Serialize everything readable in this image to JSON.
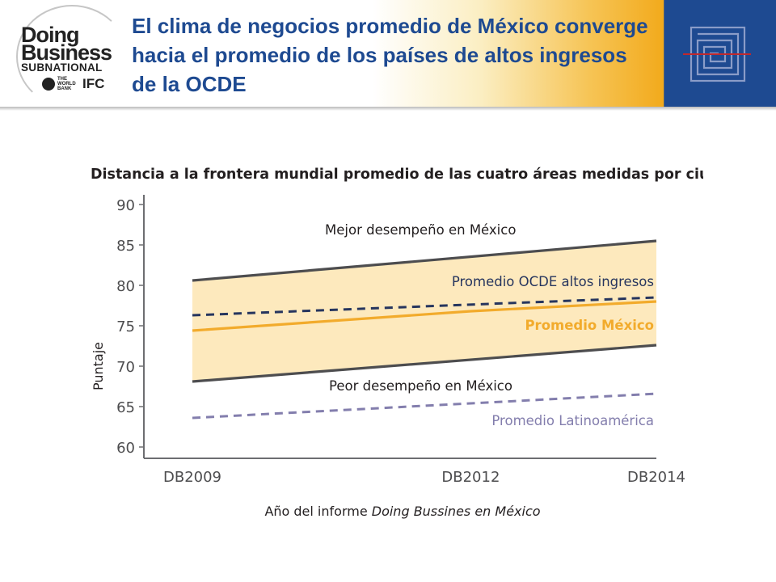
{
  "header": {
    "title": "El clima de negocios promedio de México converge hacia el promedio de los países de altos ingresos de la OCDE",
    "logo": {
      "line1": "Doing",
      "line2": "Business",
      "line3": "SUBNATIONAL",
      "partner1": "THE WORLD BANK",
      "partner2": "IFC"
    },
    "icon": "maze-icon",
    "colors": {
      "blue": "#1e4a91",
      "gold": "#f2aa1c"
    }
  },
  "chart_data": {
    "type": "line",
    "title": "Distancia a la frontera mundial promedio de las cuatro áreas medidas por ciudad",
    "xlabel_plain": "Año del informe ",
    "xlabel_italic": "Doing Bussines en México",
    "ylabel": "Puntaje",
    "ylim": [
      60,
      90
    ],
    "yticks": [
      "60",
      "65",
      "70",
      "75",
      "80",
      "85",
      "90"
    ],
    "categories": [
      "DB2009",
      "DB2012",
      "DB2014"
    ],
    "x": [
      2009,
      2012,
      2014
    ],
    "series": [
      {
        "name": "Mejor desempeño en México",
        "style": "solid",
        "color": "#4d4d4f",
        "x": [
          2009,
          2014
        ],
        "values": [
          80.6,
          85.5
        ]
      },
      {
        "name": "Promedio OCDE altos ingresos",
        "style": "dashed",
        "color": "#26355e",
        "x": [
          2009,
          2014
        ],
        "values": [
          76.3,
          78.5
        ]
      },
      {
        "name": "Promedio México",
        "style": "solid",
        "color": "#f2ab2c",
        "x": [
          2009,
          2012,
          2014
        ],
        "values": [
          74.4,
          76.8,
          78.0
        ]
      },
      {
        "name": "Peor desempeño en México",
        "style": "solid",
        "color": "#4d4d4f",
        "x": [
          2009,
          2014
        ],
        "values": [
          68.1,
          72.6
        ]
      },
      {
        "name": "Promedio Latinoamérica",
        "style": "dashed",
        "color": "#837ead",
        "x": [
          2009,
          2014
        ],
        "values": [
          63.6,
          66.6
        ]
      }
    ],
    "band": {
      "between": [
        "Peor desempeño en México",
        "Mejor desempeño en México"
      ],
      "color": "#fde9bd"
    }
  }
}
